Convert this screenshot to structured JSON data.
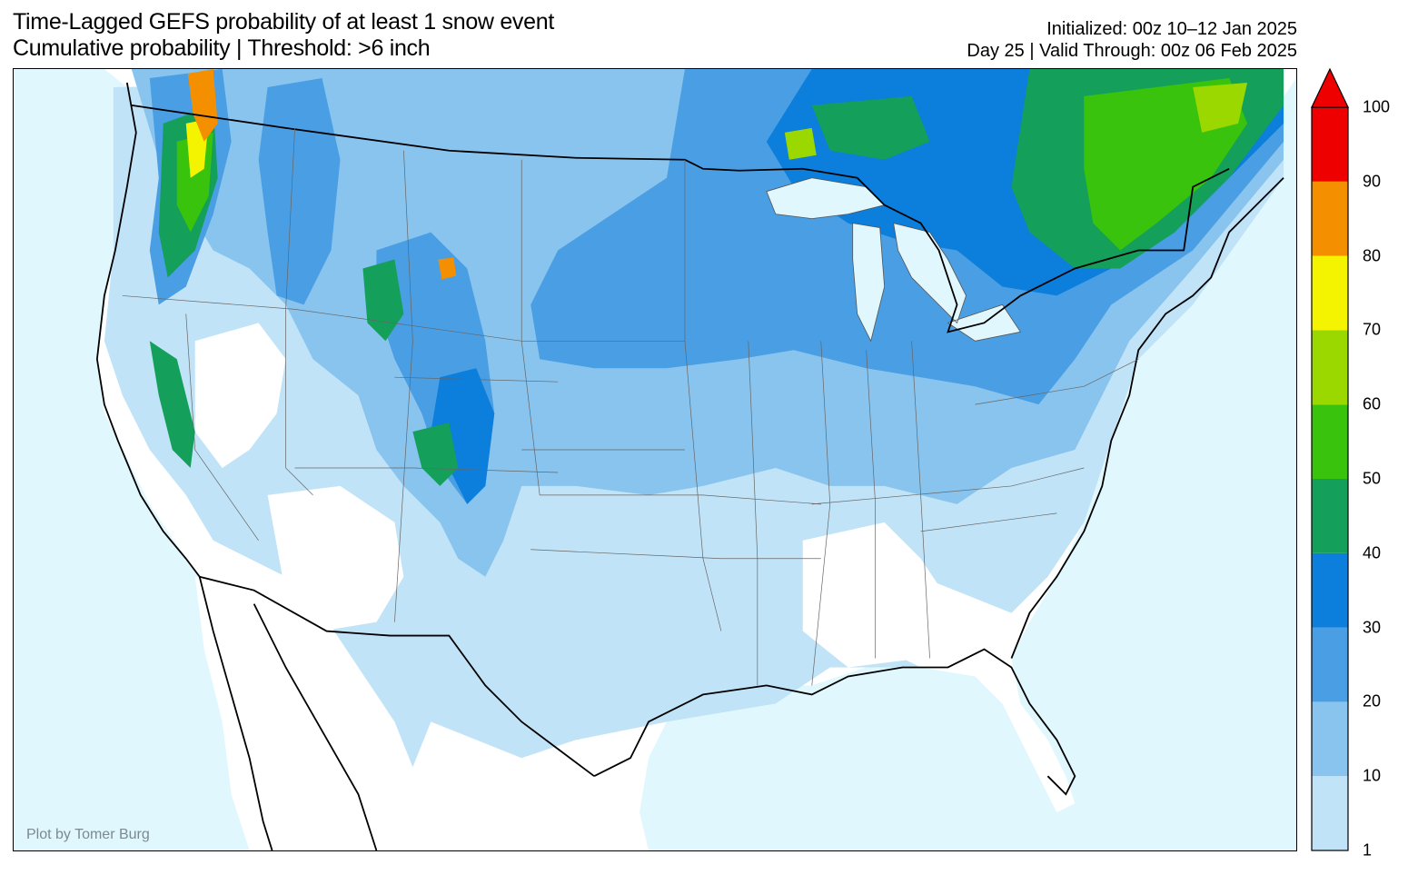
{
  "title": {
    "line1": "Time-Lagged GEFS probability of at least 1 snow event",
    "line2": "Cumulative probability | Threshold: >6 inch"
  },
  "subtitle": {
    "line1": "Initialized: 00z 10–12 Jan 2025",
    "line2": "Day 25 | Valid Through: 00z 06 Feb 2025"
  },
  "credit": "Plot by Tomer Burg",
  "colors": {
    "ocean": "#e0f7fd",
    "land": "#ffffff",
    "c1_10": "#c1e3f7",
    "c10_20": "#88c4ee",
    "c20_30": "#4a9ee3",
    "c30_40": "#0c7edb",
    "c40_50": "#14a05a",
    "c50_60": "#3ac30c",
    "c60_70": "#9ad800",
    "c70_80": "#f4f400",
    "c80_90": "#f49000",
    "c90_100": "#ef0000"
  },
  "colorbar": {
    "ticks": [
      "100",
      "90",
      "80",
      "70",
      "60",
      "50",
      "40",
      "30",
      "20",
      "10",
      "1"
    ],
    "bins": [
      {
        "range": "1-10",
        "color": "#c1e3f7"
      },
      {
        "range": "10-20",
        "color": "#88c4ee"
      },
      {
        "range": "20-30",
        "color": "#4a9ee3"
      },
      {
        "range": "30-40",
        "color": "#0c7edb"
      },
      {
        "range": "40-50",
        "color": "#14a05a"
      },
      {
        "range": "50-60",
        "color": "#3ac30c"
      },
      {
        "range": "60-70",
        "color": "#9ad800"
      },
      {
        "range": "70-80",
        "color": "#f4f400"
      },
      {
        "range": "80-90",
        "color": "#f49000"
      },
      {
        "range": "90-100",
        "color": "#ef0000"
      }
    ],
    "extend": "max"
  }
}
